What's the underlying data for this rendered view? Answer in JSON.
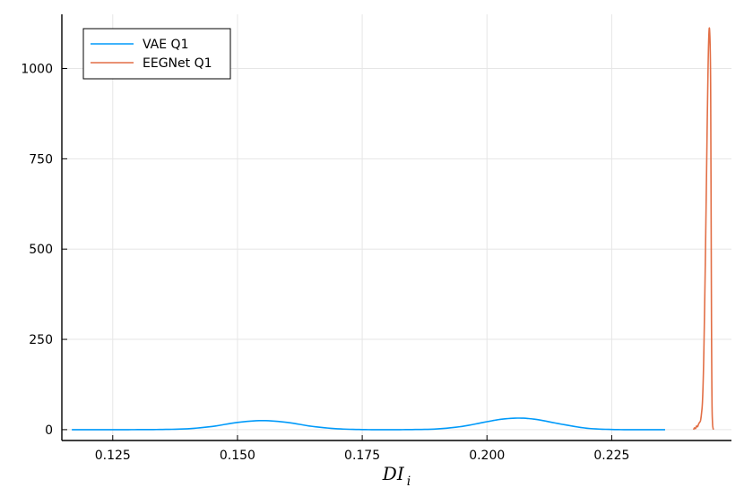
{
  "chart_data": {
    "type": "line",
    "title": "",
    "xlabel": "DI",
    "xlabel_subscript": "i",
    "ylabel": "",
    "xlim": [
      0.1148,
      0.249
    ],
    "ylim": [
      -30,
      1150
    ],
    "x_ticks": [
      0.125,
      0.15,
      0.175,
      0.2,
      0.225
    ],
    "x_tick_labels": [
      "0.125",
      "0.150",
      "0.175",
      "0.200",
      "0.225"
    ],
    "y_ticks": [
      0,
      250,
      500,
      750,
      1000
    ],
    "y_tick_labels": [
      "0",
      "250",
      "500",
      "750",
      "1000"
    ],
    "grid": true,
    "legend_position": "top-left",
    "series": [
      {
        "name": "VAE Q1",
        "color": "#009AFA",
        "x": [
          0.1168,
          0.12,
          0.125,
          0.13,
          0.135,
          0.14,
          0.145,
          0.15,
          0.155,
          0.16,
          0.165,
          0.17,
          0.175,
          0.18,
          0.185,
          0.19,
          0.195,
          0.2,
          0.203,
          0.2065,
          0.21,
          0.215,
          0.22,
          0.225,
          0.23,
          0.2357
        ],
        "y": [
          0,
          0,
          0,
          0.1,
          0.6,
          2.5,
          9,
          20,
          25,
          20,
          9,
          2.5,
          0.3,
          0,
          0.3,
          2,
          9,
          22,
          29,
          32,
          28,
          15,
          4,
          0.5,
          0,
          0
        ]
      },
      {
        "name": "EEGNet Q1",
        "color": "#E26F46",
        "x": [
          0.2414,
          0.2416,
          0.2418,
          0.242,
          0.2422,
          0.2424,
          0.2426,
          0.2428,
          0.243,
          0.2432,
          0.2434,
          0.2436,
          0.2438,
          0.244,
          0.2442,
          0.2444,
          0.2446,
          0.2448,
          0.2449,
          0.245,
          0.2451,
          0.2452,
          0.2453,
          0.2454
        ],
        "y": [
          0,
          5,
          3,
          10,
          8,
          15,
          20,
          25,
          45,
          80,
          170,
          320,
          500,
          700,
          900,
          1060,
          1110,
          1000,
          700,
          300,
          80,
          20,
          5,
          0
        ]
      }
    ]
  }
}
